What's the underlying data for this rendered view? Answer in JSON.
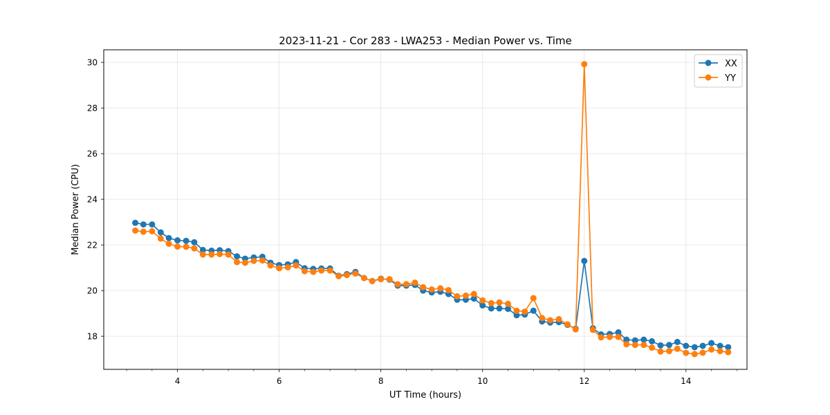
{
  "chart_data": {
    "type": "line",
    "title": "2023-11-21 - Cor 283 - LWA253 - Median Power vs. Time",
    "xlabel": "UT Time (hours)",
    "ylabel": "Median Power (CPU)",
    "xlim": [
      2.55,
      15.2
    ],
    "ylim": [
      16.55,
      30.55
    ],
    "xticks": [
      4,
      6,
      8,
      10,
      12,
      14
    ],
    "xtick_labels": [
      "4",
      "6",
      "8",
      "10",
      "12",
      "14"
    ],
    "x_minor_step": 0.5,
    "yticks": [
      18,
      20,
      22,
      24,
      26,
      28,
      30
    ],
    "ytick_labels": [
      "18",
      "20",
      "22",
      "24",
      "26",
      "28",
      "30"
    ],
    "grid": true,
    "legend_location": "top-right",
    "x": [
      3.17,
      3.33,
      3.5,
      3.67,
      3.83,
      4.0,
      4.17,
      4.33,
      4.5,
      4.67,
      4.83,
      5.0,
      5.17,
      5.33,
      5.5,
      5.67,
      5.83,
      6.0,
      6.17,
      6.33,
      6.5,
      6.67,
      6.83,
      7.0,
      7.17,
      7.33,
      7.5,
      7.67,
      7.83,
      8.0,
      8.17,
      8.33,
      8.5,
      8.67,
      8.83,
      9.0,
      9.17,
      9.33,
      9.5,
      9.67,
      9.83,
      10.0,
      10.17,
      10.33,
      10.5,
      10.67,
      10.83,
      11.0,
      11.17,
      11.33,
      11.5,
      11.67,
      11.83,
      12.0,
      12.17,
      12.33,
      12.5,
      12.67,
      12.83,
      13.0,
      13.17,
      13.33,
      13.5,
      13.67,
      13.83,
      14.0,
      14.17,
      14.33,
      14.5,
      14.67,
      14.83
    ],
    "series": [
      {
        "name": "XX",
        "color": "#1f77b4",
        "values": [
          22.97,
          22.9,
          22.9,
          22.55,
          22.3,
          22.2,
          22.18,
          22.12,
          21.78,
          21.75,
          21.77,
          21.73,
          21.5,
          21.4,
          21.45,
          21.48,
          21.22,
          21.12,
          21.15,
          21.25,
          20.98,
          20.95,
          20.97,
          20.97,
          20.65,
          20.72,
          20.82,
          20.55,
          20.42,
          20.52,
          20.48,
          20.22,
          20.22,
          20.25,
          20.0,
          19.92,
          19.95,
          19.85,
          19.6,
          19.6,
          19.65,
          19.35,
          19.22,
          19.22,
          19.2,
          18.92,
          18.95,
          19.12,
          18.65,
          18.6,
          18.62,
          18.5,
          18.33,
          21.3,
          18.35,
          18.08,
          18.1,
          18.17,
          17.85,
          17.82,
          17.85,
          17.78,
          17.6,
          17.62,
          17.75,
          17.58,
          17.52,
          17.58,
          17.7,
          17.58,
          17.52
        ]
      },
      {
        "name": "YY",
        "color": "#ff7f0e",
        "values": [
          22.63,
          22.58,
          22.6,
          22.28,
          22.05,
          21.93,
          21.92,
          21.85,
          21.58,
          21.58,
          21.6,
          21.58,
          21.25,
          21.22,
          21.3,
          21.32,
          21.1,
          20.98,
          21.02,
          21.1,
          20.85,
          20.82,
          20.88,
          20.88,
          20.63,
          20.68,
          20.75,
          20.55,
          20.42,
          20.5,
          20.5,
          20.28,
          20.28,
          20.35,
          20.15,
          20.05,
          20.1,
          20.02,
          19.75,
          19.78,
          19.85,
          19.57,
          19.45,
          19.48,
          19.42,
          19.12,
          19.08,
          19.67,
          18.8,
          18.7,
          18.75,
          18.52,
          18.3,
          29.92,
          18.28,
          17.95,
          17.97,
          17.97,
          17.65,
          17.62,
          17.62,
          17.5,
          17.33,
          17.35,
          17.45,
          17.27,
          17.22,
          17.28,
          17.42,
          17.35,
          17.3
        ]
      }
    ]
  }
}
